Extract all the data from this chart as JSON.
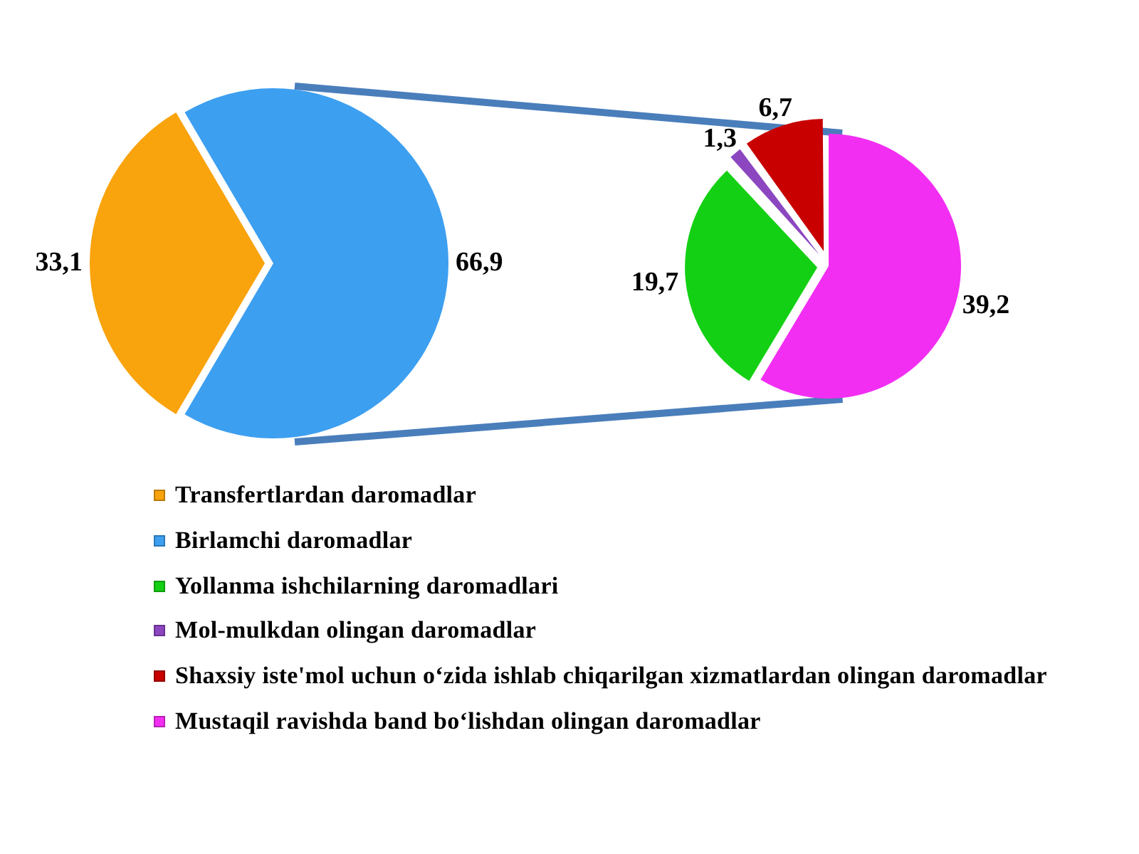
{
  "chart_data": [
    {
      "type": "pie",
      "categories": [
        "Transfertlardan daromadlar",
        "Birlamchi daromadlar"
      ],
      "values": [
        33.1,
        66.9
      ],
      "colors": [
        "#f9a30d",
        "#3d9ff0"
      ],
      "value_labels": [
        "33,1",
        "66,9"
      ],
      "legend": "bottom"
    },
    {
      "type": "pie",
      "categories": [
        "Yollanma ishchilarning daromadlari",
        "Mol-mulkdan olingan daromadlar",
        "Shaxsiy iste'mol uchun o‘zida ishlab chiqarilgan xizmatlardan olingan daromadlar",
        "Mustaqil ravishda band bo‘lishdan olingan daromadlar"
      ],
      "values": [
        19.7,
        1.3,
        6.7,
        39.2
      ],
      "colors": [
        "#14d014",
        "#8b46c0",
        "#c80000",
        "#f22ef2"
      ],
      "value_labels": [
        "19,7",
        "1,3",
        "6,7",
        "39,2"
      ],
      "legend": "bottom"
    }
  ]
}
